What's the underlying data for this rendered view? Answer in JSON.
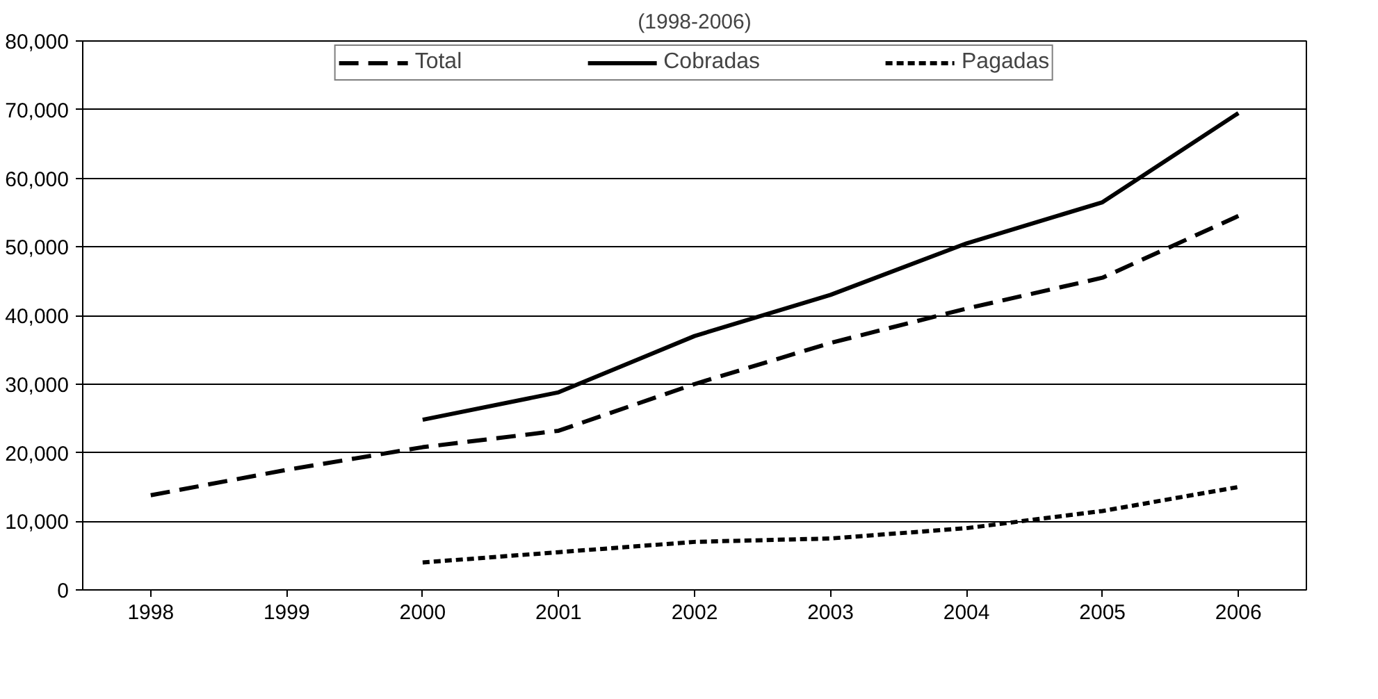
{
  "chart_data": {
    "type": "line",
    "title": "(1998-2006)",
    "categories": [
      "1998",
      "1999",
      "2000",
      "2001",
      "2002",
      "2003",
      "2004",
      "2005",
      "2006"
    ],
    "series": [
      {
        "name": "Total",
        "color": "#000000",
        "line_style": "dashed",
        "values": [
          13800,
          17500,
          20800,
          23200,
          30000,
          36000,
          41000,
          45500,
          54500
        ]
      },
      {
        "name": "Cobradas",
        "color": "#000000",
        "line_style": "solid",
        "values": [
          null,
          null,
          24800,
          28800,
          37000,
          43000,
          50500,
          56500,
          69500
        ]
      },
      {
        "name": "Pagadas",
        "color": "#000000",
        "line_style": "dotted",
        "values": [
          null,
          null,
          4000,
          5500,
          7000,
          7500,
          9000,
          11500,
          15000
        ]
      }
    ],
    "ylim": [
      0,
      80000
    ],
    "yticks": [
      {
        "value": 0,
        "label": "0"
      },
      {
        "value": 10000,
        "label": "10,000"
      },
      {
        "value": 20000,
        "label": "20,000"
      },
      {
        "value": 30000,
        "label": "30,000"
      },
      {
        "value": 40000,
        "label": "40,000"
      },
      {
        "value": 50000,
        "label": "50,000"
      },
      {
        "value": 60000,
        "label": "60,000"
      },
      {
        "value": 70000,
        "label": "70,000"
      },
      {
        "value": 80000,
        "label": "80,000"
      }
    ],
    "grid": "y",
    "legend": "top"
  }
}
